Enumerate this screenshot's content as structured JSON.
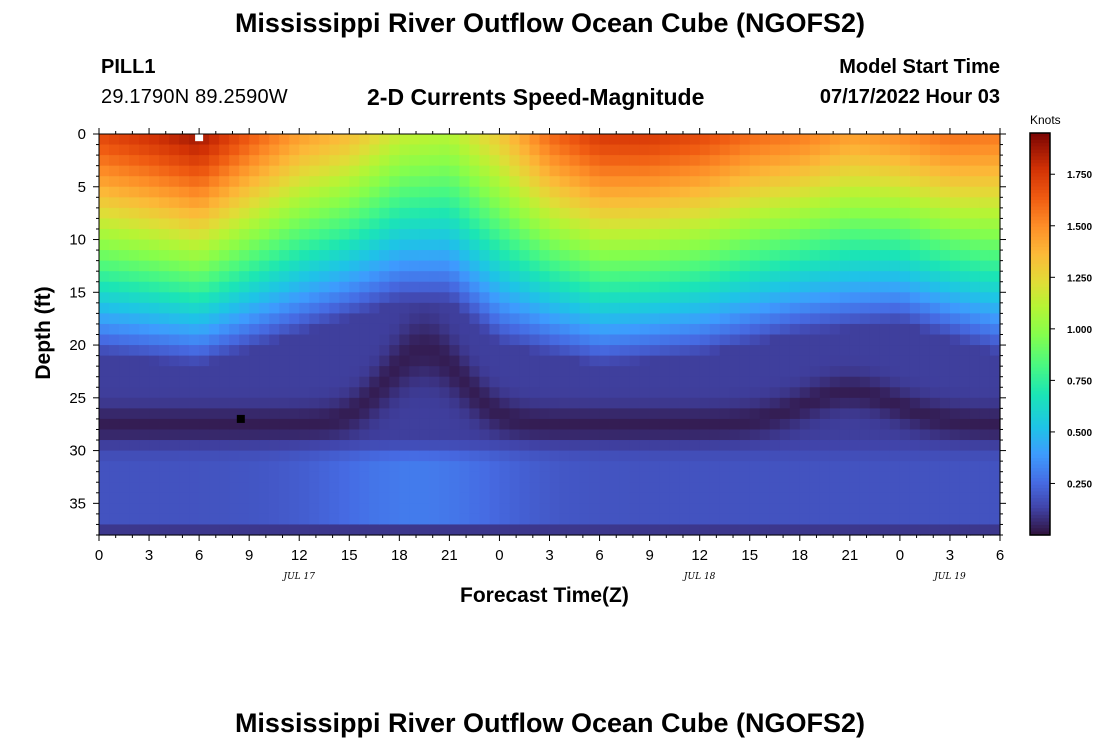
{
  "page_title": "Mississippi River Outflow Ocean Cube (NGOFS2)",
  "station": {
    "id": "PILL1",
    "coordinates": "29.1790N  89.2590W"
  },
  "subtitle": "2-D Currents Speed-Magnitude",
  "model_start": {
    "label": "Model Start Time",
    "value": "07/17/2022 Hour 03"
  },
  "footer_title": "Mississippi River Outflow Ocean Cube (NGOFS2)",
  "chart_data": {
    "type": "heatmap",
    "title": "2-D Currents Speed-Magnitude",
    "xlabel": "Forecast Time(Z)",
    "ylabel": "Depth (ft)",
    "x_tick_labels": [
      "0",
      "3",
      "6",
      "9",
      "12",
      "15",
      "18",
      "21",
      "0",
      "3",
      "6",
      "9",
      "12",
      "15",
      "18",
      "21",
      "0",
      "3",
      "6"
    ],
    "x_range_hours": [
      0,
      54
    ],
    "date_labels": [
      {
        "text": "JUL 17",
        "hour": 12
      },
      {
        "text": "JUL 18",
        "hour": 36
      },
      {
        "text": "JUL 19",
        "hour": 51
      }
    ],
    "y_tick_labels": [
      "0",
      "5",
      "10",
      "15",
      "20",
      "25",
      "30",
      "35"
    ],
    "y_tick_values": [
      0,
      5,
      10,
      15,
      20,
      25,
      30,
      35
    ],
    "ylim_ft": [
      0,
      38
    ],
    "y_inverted": true,
    "colorbar": {
      "units": "Knots",
      "range": [
        0.0,
        1.95
      ],
      "tick_labels": [
        "0.250",
        "0.500",
        "0.750",
        "1.000",
        "1.250",
        "1.500",
        "1.750"
      ],
      "tick_values": [
        0.25,
        0.5,
        0.75,
        1.0,
        1.25,
        1.5,
        1.75
      ],
      "colormap": "turbo"
    },
    "surface_speed_knots_by_hour": [
      {
        "hour": 0,
        "speed": 1.7
      },
      {
        "hour": 3,
        "speed": 1.78
      },
      {
        "hour": 6,
        "speed": 1.88
      },
      {
        "hour": 9,
        "speed": 1.65
      },
      {
        "hour": 12,
        "speed": 1.45
      },
      {
        "hour": 15,
        "speed": 1.35
      },
      {
        "hour": 18,
        "speed": 1.15
      },
      {
        "hour": 21,
        "speed": 1.1
      },
      {
        "hour": 24,
        "speed": 1.3
      },
      {
        "hour": 27,
        "speed": 1.6
      },
      {
        "hour": 30,
        "speed": 1.75
      },
      {
        "hour": 33,
        "speed": 1.75
      },
      {
        "hour": 36,
        "speed": 1.7
      },
      {
        "hour": 39,
        "speed": 1.6
      },
      {
        "hour": 42,
        "speed": 1.55
      },
      {
        "hour": 45,
        "speed": 1.45
      },
      {
        "hour": 48,
        "speed": 1.5
      },
      {
        "hour": 51,
        "speed": 1.58
      },
      {
        "hour": 54,
        "speed": 1.55
      }
    ],
    "mixing_depth_ft_by_hour": [
      {
        "hour": 0,
        "depth": 21
      },
      {
        "hour": 6,
        "depth": 22
      },
      {
        "hour": 12,
        "depth": 19
      },
      {
        "hour": 18,
        "depth": 16
      },
      {
        "hour": 21,
        "depth": 16
      },
      {
        "hour": 24,
        "depth": 20
      },
      {
        "hour": 30,
        "depth": 22
      },
      {
        "hour": 36,
        "depth": 21
      },
      {
        "hour": 42,
        "depth": 19
      },
      {
        "hour": 48,
        "depth": 18
      },
      {
        "hour": 54,
        "depth": 21
      }
    ],
    "minimum_speed_band": {
      "description": "low-speed layer near 27-28 ft",
      "speed_knots": 0.03
    },
    "markers": [
      {
        "name": "surface-max-marker",
        "hour": 6,
        "depth_ft": 0.3,
        "color": "#ffffff"
      },
      {
        "name": "subsurface-min-marker",
        "hour": 8.5,
        "depth_ft": 27,
        "color": "#000000"
      }
    ]
  }
}
